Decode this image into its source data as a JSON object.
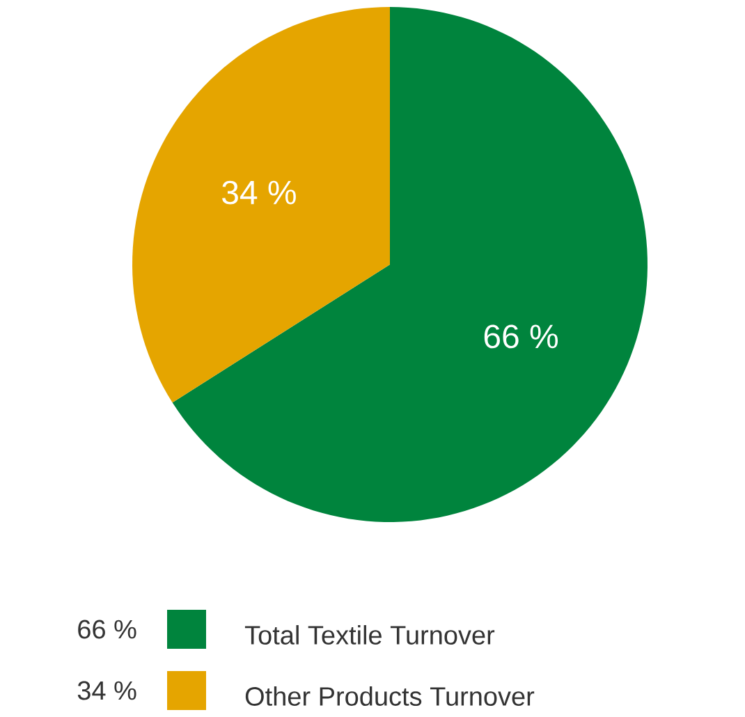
{
  "chart_data": {
    "type": "pie",
    "categories": [
      "Total Textile Turnover",
      "Other Products Turnover"
    ],
    "values": [
      66,
      34
    ],
    "colors": [
      "#00843d",
      "#e5a500"
    ],
    "value_labels": [
      "66 %",
      "34 %"
    ],
    "legend": "bottom"
  }
}
